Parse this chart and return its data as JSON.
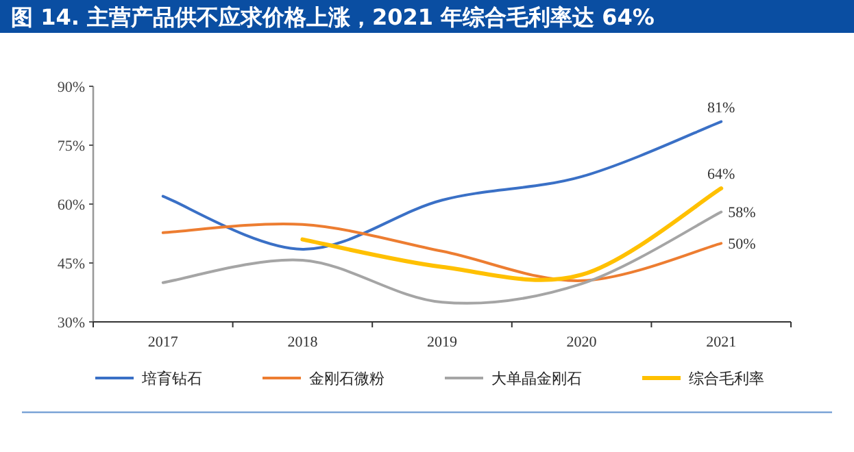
{
  "chart_data": {
    "type": "line",
    "title": "图 14. 主营产品供不应求价格上涨，2021 年综合毛利率达 64%",
    "categories": [
      "2017",
      "2018",
      "2019",
      "2020",
      "2021"
    ],
    "ylim": [
      30,
      90
    ],
    "yticks": [
      {
        "value": 30,
        "label": "30%"
      },
      {
        "value": 45,
        "label": "45%"
      },
      {
        "value": 60,
        "label": "60%"
      },
      {
        "value": 75,
        "label": "75%"
      },
      {
        "value": 90,
        "label": "90%"
      }
    ],
    "grid": false,
    "legend": "bottom",
    "marker": "none",
    "line_style": "solid",
    "series": [
      {
        "name": "培育钻石",
        "color": "#3a70c6",
        "values": [
          62,
          48.5,
          61,
          67,
          81
        ],
        "value_labels": [
          null,
          null,
          null,
          null,
          "81%"
        ]
      },
      {
        "name": "金刚石微粉",
        "color": "#ed7d31",
        "values": [
          52.7,
          54.8,
          48,
          40.5,
          50
        ],
        "value_labels": [
          null,
          null,
          null,
          null,
          "50%"
        ]
      },
      {
        "name": "大单晶金刚石",
        "color": "#a5a5a5",
        "values": [
          40,
          45.7,
          35,
          39.7,
          58
        ],
        "value_labels": [
          null,
          null,
          null,
          null,
          "58%"
        ]
      },
      {
        "name": "综合毛利率",
        "color": "#ffc000",
        "values": [
          null,
          51,
          44,
          42,
          64
        ],
        "value_labels": [
          null,
          null,
          null,
          null,
          "64%"
        ]
      }
    ]
  }
}
